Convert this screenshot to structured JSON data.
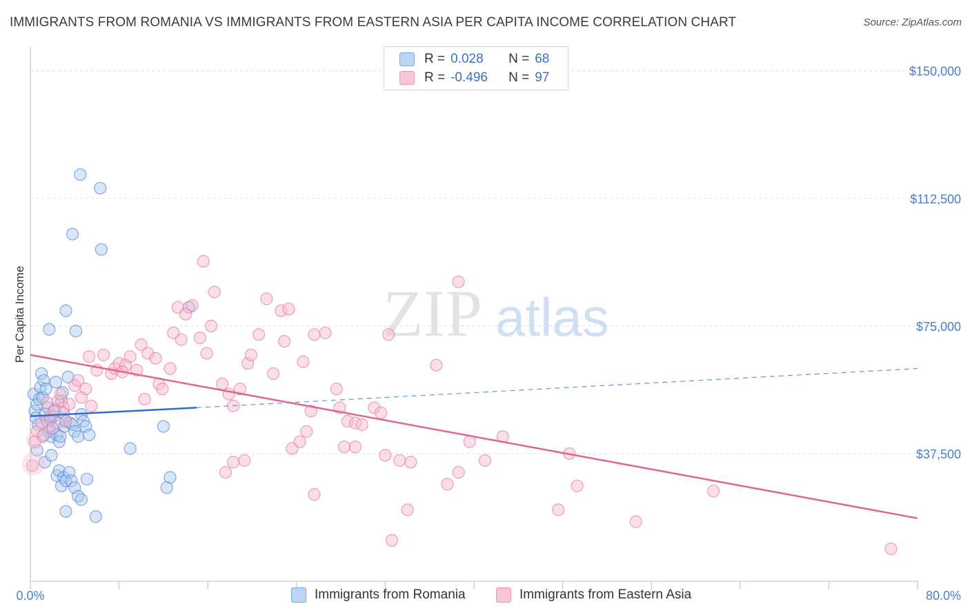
{
  "title": "IMMIGRANTS FROM ROMANIA VS IMMIGRANTS FROM EASTERN ASIA PER CAPITA INCOME CORRELATION CHART",
  "source": "Source: ZipAtlas.com",
  "watermark": {
    "zip": "ZIP",
    "atlas": "atlas"
  },
  "colors": {
    "romania_fill": "#a9c8f0",
    "romania_stroke": "#5b8fd6",
    "romania_line": "#2f6fcc",
    "asia_fill": "#f7b8cc",
    "asia_stroke": "#e8809f",
    "asia_line": "#e0668e",
    "grid": "#dcdcdc",
    "tick_text": "#4a7fd0"
  },
  "legend": {
    "rows": [
      {
        "r_label": "R =",
        "r_value": "0.028",
        "n_label": "N =",
        "n_value": "68"
      },
      {
        "r_label": "R =",
        "r_value": "-0.496",
        "n_label": "N =",
        "n_value": "97"
      }
    ]
  },
  "bottom_legend": {
    "series1": "Immigrants from Romania",
    "series2": "Immigrants from Eastern Asia"
  },
  "chart_data": {
    "type": "scatter",
    "xlabel": "",
    "ylabel": "Per Capita Income",
    "xlim": [
      0,
      80
    ],
    "ylim": [
      0,
      155000
    ],
    "x_tick_labels": [
      "0.0%",
      "80.0%"
    ],
    "y_ticks": [
      37500,
      75000,
      112500,
      150000
    ],
    "y_tick_labels": [
      "$37,500",
      "$75,000",
      "$112,500",
      "$150,000"
    ],
    "grid": "horizontal dashed",
    "series": [
      {
        "name": "Immigrants from Romania",
        "trend": {
          "solid": [
            [
              0,
              48500
            ],
            [
              15,
              51000
            ]
          ],
          "dashed": [
            [
              15,
              51000
            ],
            [
              80,
              62500
            ]
          ]
        },
        "points": [
          [
            0.3,
            55000
          ],
          [
            0.4,
            50000
          ],
          [
            0.5,
            48000
          ],
          [
            0.6,
            52000
          ],
          [
            0.7,
            46000
          ],
          [
            0.8,
            53500
          ],
          [
            0.9,
            57000
          ],
          [
            1.0,
            61000
          ],
          [
            1.1,
            54000
          ],
          [
            1.2,
            59000
          ],
          [
            1.3,
            49000
          ],
          [
            1.4,
            56500
          ],
          [
            1.5,
            47000
          ],
          [
            1.6,
            51000
          ],
          [
            1.7,
            44000
          ],
          [
            1.8,
            47500
          ],
          [
            1.9,
            42500
          ],
          [
            2.0,
            45000
          ],
          [
            2.1,
            48500
          ],
          [
            2.2,
            50500
          ],
          [
            2.3,
            58500
          ],
          [
            2.4,
            43000
          ],
          [
            2.5,
            46500
          ],
          [
            2.6,
            41000
          ],
          [
            2.7,
            42500
          ],
          [
            2.8,
            53000
          ],
          [
            2.9,
            55500
          ],
          [
            3.0,
            49500
          ],
          [
            3.1,
            45500
          ],
          [
            3.2,
            47000
          ],
          [
            3.4,
            60000
          ],
          [
            3.6,
            46500
          ],
          [
            3.8,
            46000
          ],
          [
            4.0,
            44000
          ],
          [
            4.3,
            42500
          ],
          [
            4.6,
            49000
          ],
          [
            4.8,
            47000
          ],
          [
            5.0,
            45500
          ],
          [
            5.3,
            43000
          ],
          [
            1.3,
            35000
          ],
          [
            2.4,
            31000
          ],
          [
            2.6,
            32500
          ],
          [
            2.8,
            28000
          ],
          [
            3.0,
            30500
          ],
          [
            3.2,
            29500
          ],
          [
            3.5,
            32000
          ],
          [
            3.7,
            29500
          ],
          [
            4.0,
            27500
          ],
          [
            4.3,
            25000
          ],
          [
            4.6,
            24000
          ],
          [
            5.1,
            30000
          ],
          [
            3.2,
            20500
          ],
          [
            5.9,
            19000
          ],
          [
            9.0,
            39000
          ],
          [
            12.0,
            45500
          ],
          [
            12.3,
            27500
          ],
          [
            12.6,
            30500
          ],
          [
            3.2,
            79500
          ],
          [
            1.7,
            74000
          ],
          [
            4.1,
            73500
          ],
          [
            3.8,
            102000
          ],
          [
            6.4,
            97500
          ],
          [
            4.5,
            119500
          ],
          [
            6.3,
            115500
          ],
          [
            14.3,
            80500
          ],
          [
            0.6,
            38500
          ],
          [
            1.1,
            42500
          ],
          [
            1.9,
            37000
          ]
        ]
      },
      {
        "name": "Immigrants from Eastern Asia",
        "trend": {
          "solid": [
            [
              0,
              66500
            ],
            [
              80,
              18500
            ]
          ]
        },
        "points": [
          [
            0.2,
            34000
          ],
          [
            0.4,
            41000
          ],
          [
            0.6,
            44000
          ],
          [
            1.0,
            46500
          ],
          [
            1.2,
            43000
          ],
          [
            1.5,
            52500
          ],
          [
            1.8,
            48500
          ],
          [
            2.0,
            45000
          ],
          [
            2.2,
            50000
          ],
          [
            2.5,
            53000
          ],
          [
            2.7,
            55000
          ],
          [
            3.0,
            51000
          ],
          [
            3.2,
            47000
          ],
          [
            3.5,
            52000
          ],
          [
            4.0,
            57500
          ],
          [
            4.3,
            59000
          ],
          [
            4.6,
            54000
          ],
          [
            5.0,
            56500
          ],
          [
            5.5,
            51500
          ],
          [
            6.0,
            62000
          ],
          [
            5.3,
            66000
          ],
          [
            6.6,
            66500
          ],
          [
            7.3,
            61000
          ],
          [
            7.6,
            62500
          ],
          [
            8.0,
            64000
          ],
          [
            8.6,
            63500
          ],
          [
            9.0,
            66000
          ],
          [
            9.6,
            62000
          ],
          [
            8.3,
            61500
          ],
          [
            10.0,
            69500
          ],
          [
            10.6,
            67000
          ],
          [
            11.3,
            65500
          ],
          [
            12.6,
            62500
          ],
          [
            11.6,
            58000
          ],
          [
            10.3,
            53500
          ],
          [
            11.9,
            56500
          ],
          [
            13.6,
            71000
          ],
          [
            12.9,
            73000
          ],
          [
            13.3,
            80500
          ],
          [
            14.0,
            78500
          ],
          [
            14.6,
            81000
          ],
          [
            15.3,
            71500
          ],
          [
            15.9,
            67000
          ],
          [
            16.3,
            75000
          ],
          [
            16.6,
            85000
          ],
          [
            15.6,
            94000
          ],
          [
            17.3,
            58000
          ],
          [
            17.9,
            55000
          ],
          [
            18.3,
            51500
          ],
          [
            18.9,
            56500
          ],
          [
            19.6,
            64000
          ],
          [
            19.9,
            66500
          ],
          [
            20.6,
            72500
          ],
          [
            21.3,
            83000
          ],
          [
            21.9,
            61000
          ],
          [
            22.6,
            79500
          ],
          [
            22.9,
            70500
          ],
          [
            23.3,
            80000
          ],
          [
            24.6,
            64500
          ],
          [
            25.6,
            72500
          ],
          [
            26.6,
            73000
          ],
          [
            27.6,
            56500
          ],
          [
            27.9,
            51000
          ],
          [
            28.6,
            47000
          ],
          [
            29.3,
            46500
          ],
          [
            29.9,
            46000
          ],
          [
            31.0,
            51000
          ],
          [
            31.6,
            49500
          ],
          [
            32.3,
            72500
          ],
          [
            36.6,
            63500
          ],
          [
            38.6,
            88000
          ],
          [
            25.3,
            50000
          ],
          [
            24.3,
            41000
          ],
          [
            23.6,
            39000
          ],
          [
            24.9,
            44000
          ],
          [
            28.3,
            39500
          ],
          [
            29.3,
            39500
          ],
          [
            32.0,
            37000
          ],
          [
            33.3,
            35500
          ],
          [
            34.3,
            35000
          ],
          [
            37.6,
            28500
          ],
          [
            38.6,
            32000
          ],
          [
            39.6,
            41000
          ],
          [
            41.0,
            35500
          ],
          [
            42.6,
            42500
          ],
          [
            48.6,
            37500
          ],
          [
            49.3,
            28000
          ],
          [
            19.3,
            35500
          ],
          [
            18.3,
            35000
          ],
          [
            17.6,
            32000
          ],
          [
            25.6,
            25500
          ],
          [
            34.0,
            21000
          ],
          [
            47.6,
            21000
          ],
          [
            54.6,
            17500
          ],
          [
            61.6,
            26500
          ],
          [
            32.6,
            12000
          ],
          [
            77.6,
            9500
          ]
        ]
      }
    ]
  }
}
